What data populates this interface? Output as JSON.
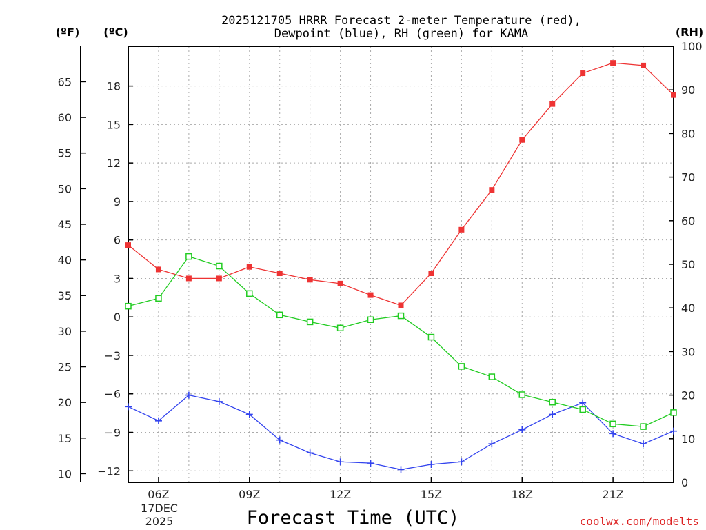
{
  "chart_data": {
    "type": "line",
    "title_line1": "2025121705 HRRR Forecast 2-meter Temperature (red),",
    "title_line2": "Dewpoint (blue), RH (green) for KAMA",
    "units": {
      "fahrenheit": "(ºF)",
      "celsius": "(ºC)",
      "rh": "(RH)"
    },
    "xlabel": "Forecast Time (UTC)",
    "date_label": [
      "17DEC",
      "2025"
    ],
    "credit": "coolwx.com/modelts",
    "x_hours": [
      5,
      6,
      7,
      8,
      9,
      10,
      11,
      12,
      13,
      14,
      15,
      16,
      17,
      18,
      19,
      20,
      21,
      22,
      23
    ],
    "x_range": [
      5,
      23
    ],
    "x_ticks": [
      {
        "hour": 6,
        "label": "06Z"
      },
      {
        "hour": 9,
        "label": "09Z"
      },
      {
        "hour": 12,
        "label": "12Z"
      },
      {
        "hour": 15,
        "label": "15Z"
      },
      {
        "hour": 18,
        "label": "18Z"
      },
      {
        "hour": 21,
        "label": "21Z"
      }
    ],
    "celsius_axis": {
      "range": [
        -12.9,
        21.1
      ],
      "ticks": [
        -12,
        -9,
        -6,
        -3,
        0,
        3,
        6,
        9,
        12,
        15,
        18
      ]
    },
    "fahrenheit_axis": {
      "ticks": [
        10,
        15,
        20,
        25,
        30,
        35,
        40,
        45,
        50,
        55,
        60,
        65
      ]
    },
    "rh_axis": {
      "range": [
        0,
        100
      ],
      "ticks": [
        0,
        10,
        20,
        30,
        40,
        50,
        60,
        70,
        80,
        90,
        100
      ]
    },
    "series": [
      {
        "name": "Temperature",
        "unit": "C",
        "color": "#ee3333",
        "marker": "filled-square",
        "values": [
          5.6,
          3.7,
          3.0,
          3.0,
          3.9,
          3.4,
          2.9,
          2.6,
          1.7,
          0.9,
          3.4,
          6.8,
          9.9,
          13.8,
          16.6,
          19.0,
          19.8,
          19.6,
          17.3
        ]
      },
      {
        "name": "Dewpoint",
        "unit": "C",
        "color": "#3344ee",
        "marker": "plus",
        "values": [
          -7.0,
          -8.1,
          -6.1,
          -6.6,
          -7.6,
          -9.6,
          -10.6,
          -11.3,
          -11.4,
          -11.9,
          -11.5,
          -11.3,
          -9.9,
          -8.8,
          -7.6,
          -6.7,
          -9.1,
          -9.9,
          -8.9
        ]
      },
      {
        "name": "RH",
        "unit": "%",
        "color": "#22cc22",
        "marker": "open-square",
        "values": [
          40.4,
          42.2,
          51.8,
          49.6,
          43.3,
          38.4,
          36.8,
          35.4,
          37.3,
          38.2,
          33.3,
          26.6,
          24.2,
          20.1,
          18.4,
          16.7,
          13.4,
          12.8,
          16.0
        ]
      }
    ]
  }
}
